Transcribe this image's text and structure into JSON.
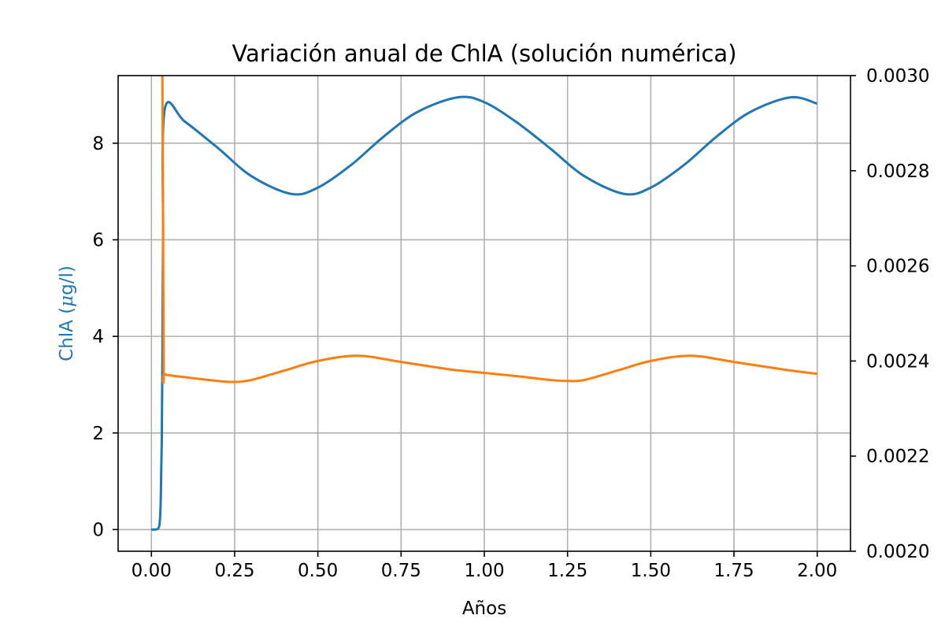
{
  "chart_data": {
    "type": "line",
    "title": "Variación anual de ChlA (solución numérica)",
    "xlabel": "Años",
    "ylabel": "ChlA ($\\mu$g/l)",
    "ylabel_color": "#1f77b4",
    "xlim": [
      -0.1,
      2.1
    ],
    "ylim_left": [
      -0.45,
      9.4
    ],
    "ylim_right": [
      0.002,
      0.003
    ],
    "xticks": [
      0.0,
      0.25,
      0.5,
      0.75,
      1.0,
      1.25,
      1.5,
      1.75,
      2.0
    ],
    "xtick_labels": [
      "0.00",
      "0.25",
      "0.50",
      "0.75",
      "1.00",
      "1.25",
      "1.50",
      "1.75",
      "2.00"
    ],
    "yticks_left": [
      0,
      2,
      4,
      6,
      8
    ],
    "ytick_left_labels": [
      "0",
      "2",
      "4",
      "6",
      "8"
    ],
    "yticks_right": [
      0.002,
      0.0022,
      0.0024,
      0.0026,
      0.0028,
      0.003
    ],
    "ytick_right_labels": [
      "0.0020",
      "0.0022",
      "0.0024",
      "0.0026",
      "0.0028",
      "0.0030"
    ],
    "grid": true,
    "series": [
      {
        "axis": "left",
        "color": "#1f77b4",
        "x": [
          0.0,
          0.01,
          0.02,
          0.025,
          0.028,
          0.031,
          0.033,
          0.035,
          0.04,
          0.1,
          0.2,
          0.3,
          0.42,
          0.5,
          0.6,
          0.7,
          0.8,
          0.92,
          1.0,
          1.1,
          1.2,
          1.3,
          1.42,
          1.5,
          1.6,
          1.7,
          1.8,
          1.92,
          2.0
        ],
        "y": [
          0.0,
          0.0,
          0.02,
          0.15,
          0.6,
          1.8,
          3.5,
          6.0,
          8.7,
          8.45,
          7.9,
          7.32,
          6.95,
          7.08,
          7.55,
          8.15,
          8.65,
          8.95,
          8.85,
          8.42,
          7.88,
          7.32,
          6.95,
          7.08,
          7.55,
          8.15,
          8.65,
          8.95,
          8.82
        ]
      },
      {
        "axis": "right",
        "color": "#ff7f0e",
        "x": [
          0.033,
          0.035,
          0.037,
          0.04,
          0.1,
          0.2,
          0.25,
          0.3,
          0.4,
          0.5,
          0.62,
          0.75,
          0.9,
          1.0,
          1.1,
          1.2,
          1.25,
          1.3,
          1.4,
          1.5,
          1.62,
          1.75,
          1.9,
          2.0
        ],
        "y": [
          0.003,
          0.0027,
          0.00238,
          0.002372,
          0.002366,
          0.002358,
          0.002356,
          0.00236,
          0.00238,
          0.0024,
          0.002411,
          0.002398,
          0.002382,
          0.002375,
          0.002368,
          0.00236,
          0.002358,
          0.00236,
          0.00238,
          0.0024,
          0.002411,
          0.002398,
          0.002382,
          0.002373
        ]
      }
    ]
  }
}
